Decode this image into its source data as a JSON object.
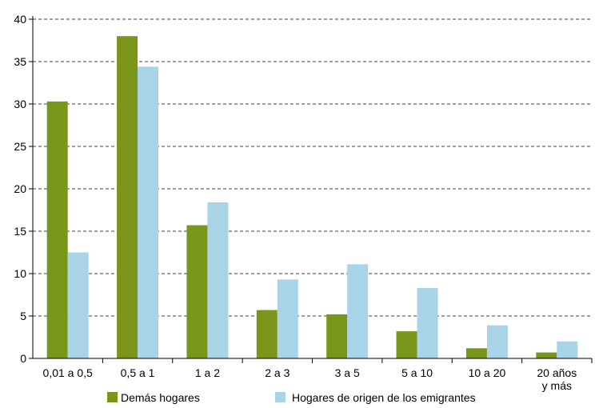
{
  "chart_data": {
    "type": "bar",
    "title": "",
    "xlabel": "",
    "ylabel": "",
    "categories": [
      [
        "0,01 a 0,5"
      ],
      [
        "0,5 a 1"
      ],
      [
        "1 a 2"
      ],
      [
        "2 a 3"
      ],
      [
        "3 a 5"
      ],
      [
        "5 a 10"
      ],
      [
        "10 a 20"
      ],
      [
        "20 años",
        "y más"
      ]
    ],
    "series": [
      {
        "name": "Demás hogares",
        "color": "#7a961a",
        "values": [
          30.3,
          38.0,
          15.7,
          5.7,
          5.2,
          3.2,
          1.2,
          0.7
        ]
      },
      {
        "name": "Hogares de origen de los emigrantes",
        "color": "#a9d3e7",
        "values": [
          12.5,
          34.4,
          18.4,
          9.3,
          11.1,
          8.3,
          3.9,
          2.0
        ]
      }
    ],
    "ylim": [
      0,
      40
    ],
    "yticks": [
      0,
      5,
      10,
      15,
      20,
      25,
      30,
      35,
      40
    ],
    "grid": "horizontal dashed",
    "legend_position": "bottom"
  }
}
